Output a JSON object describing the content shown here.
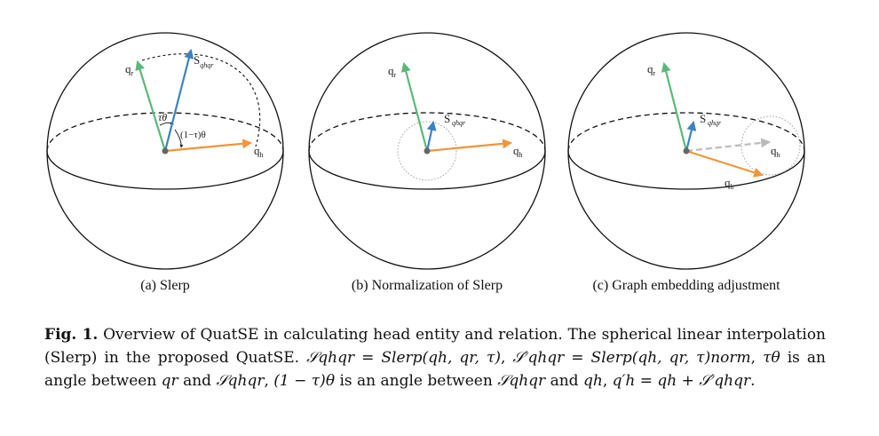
{
  "panels": [
    {
      "caption": "(a) Slerp",
      "labels": {
        "qr": "q",
        "qr_sub": "r",
        "s": "S",
        "s_sub": "qhqr",
        "qh": "q",
        "qh_sub": "h",
        "tau_theta": "τθ",
        "one_minus_tau_theta": "(1−τ)θ"
      }
    },
    {
      "caption": "(b) Normalization of Slerp",
      "labels": {
        "qr": "q",
        "qr_sub": "r",
        "s": "S",
        "s_sub": "qhqr",
        "qh": "q",
        "qh_sub": "h"
      }
    },
    {
      "caption": "(c) Graph embedding adjustment",
      "labels": {
        "qr": "q",
        "qr_sub": "r",
        "s": "S",
        "s_sub": "qhqr",
        "qh": "q",
        "qh_sub": "h",
        "qh_new": "q",
        "qh_new_sub": "h"
      }
    }
  ],
  "caption": {
    "lead": "Fig. 1.",
    "text1": " Overview of QuatSE in calculating head entity and relation. The spherical linear interpolation (Slerp) in the proposed QuatSE. ",
    "m1": "𝒮qhqr = Slerp(qh, qr, τ)",
    "t2": ", ",
    "m2": "𝒮′qhqr = Slerp(qh, qr, τ)norm",
    "t3": ", ",
    "m3": "τθ",
    "t4": " is an angle between ",
    "m4": "qr",
    "t5": " and ",
    "m5": "𝒮qhqr",
    "t6": ", ",
    "m6": "(1 − τ)θ",
    "t7": " is an angle between ",
    "m7": "𝒮qhqr",
    "t8": " and ",
    "m8": "qh",
    "t9": ", ",
    "m9": "q′h = qh + 𝒮′qhqr",
    "t10": "."
  },
  "colors": {
    "green": "#5cb878",
    "blue": "#3a83c1",
    "orange": "#f0953a",
    "gray": "#bbbbbb",
    "center": "#666666"
  }
}
